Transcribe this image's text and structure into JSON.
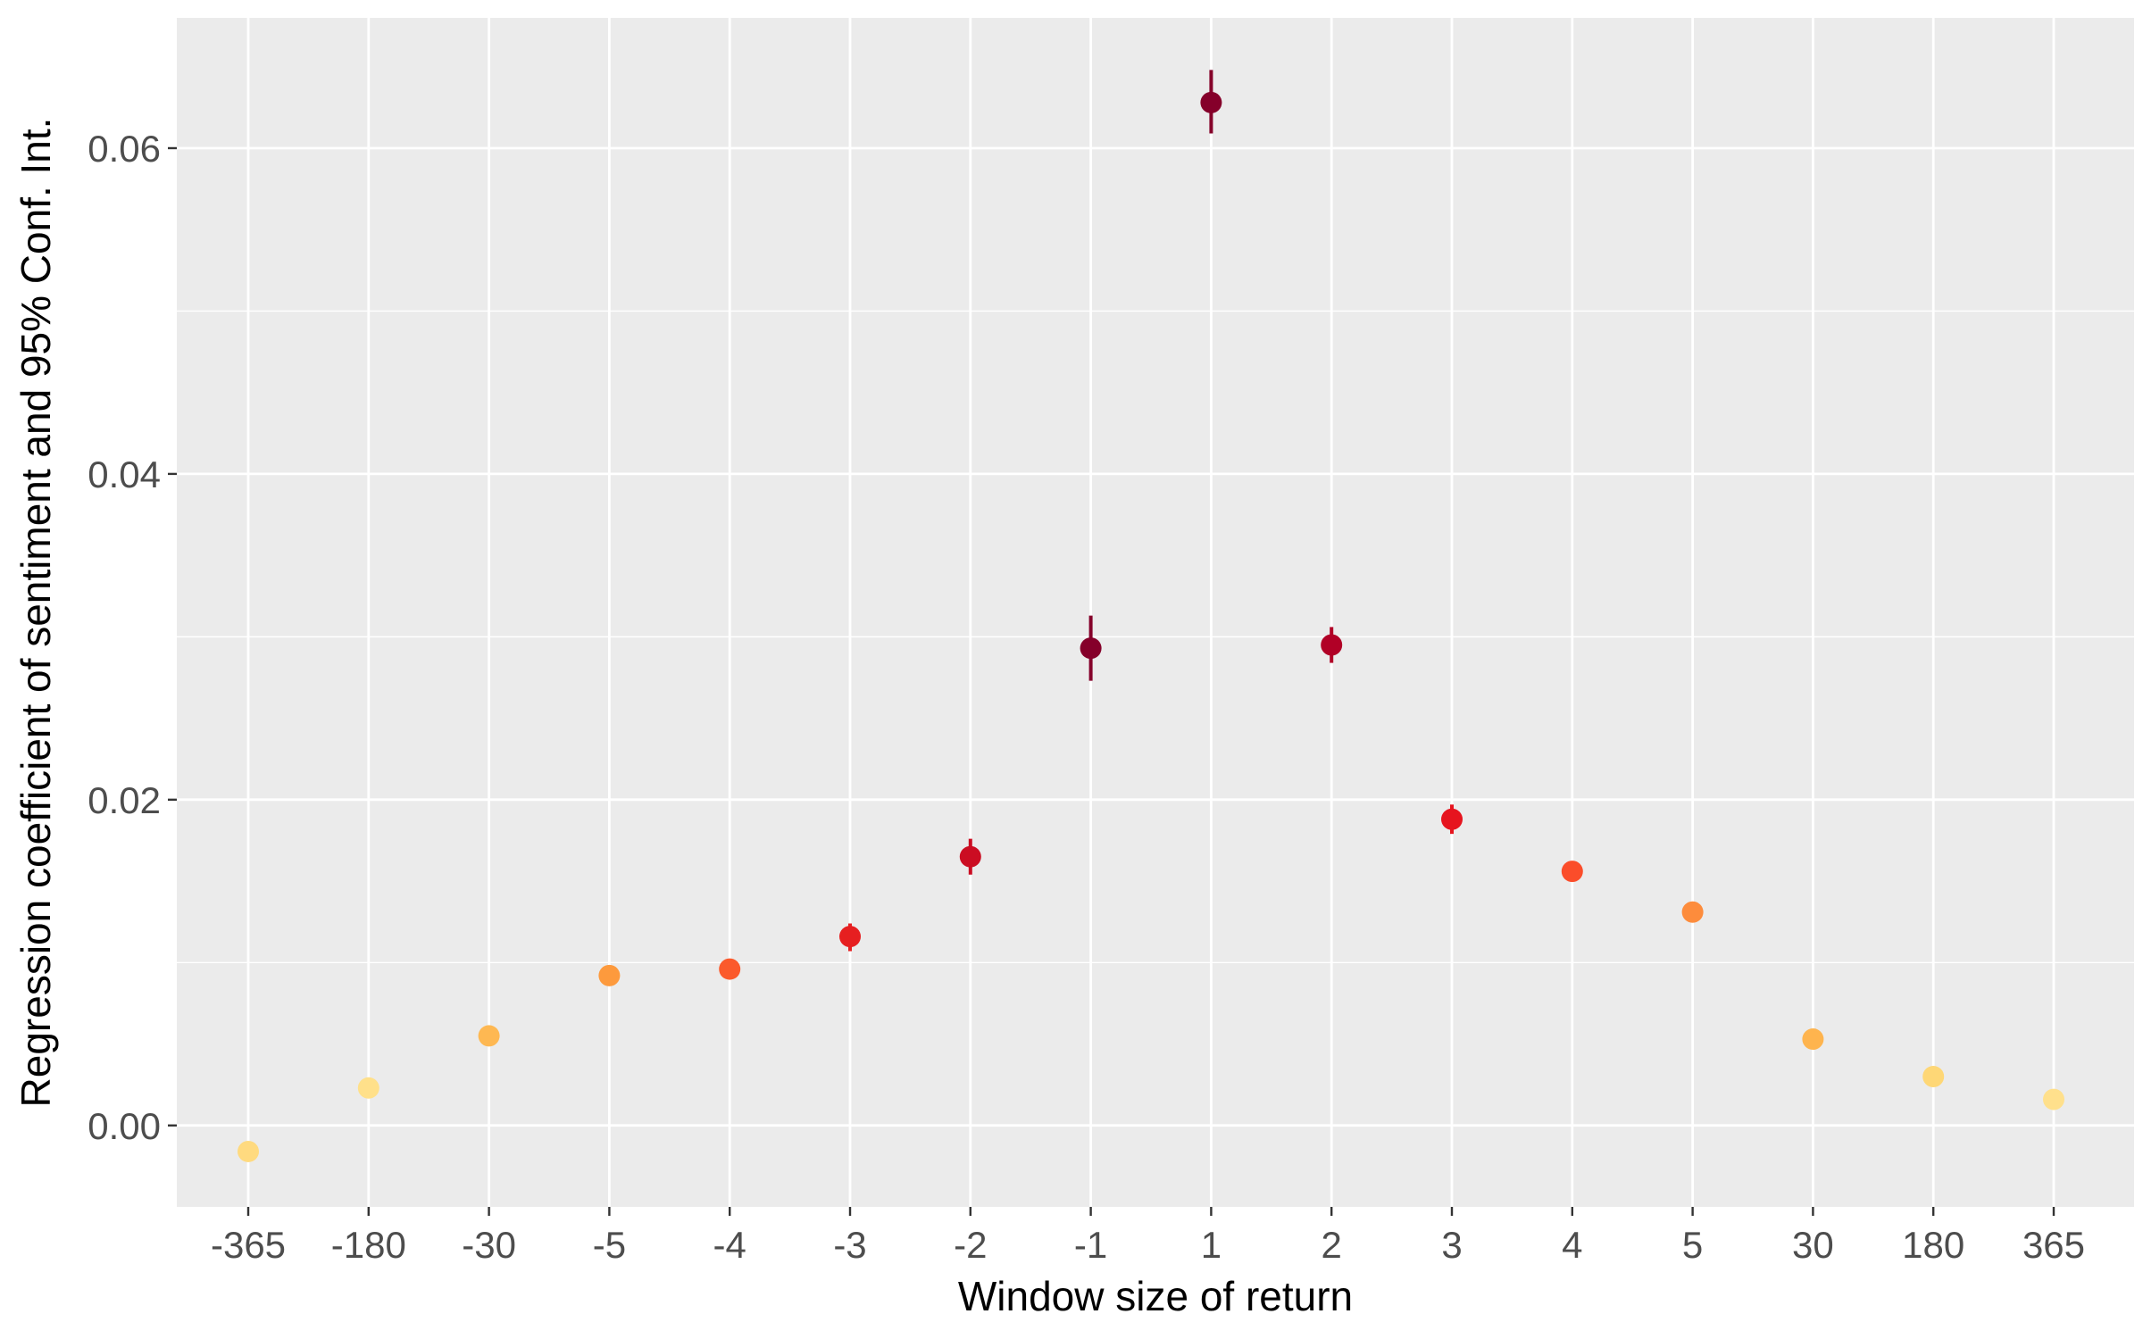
{
  "chart_data": {
    "type": "scatter",
    "title": "",
    "xlabel": "Window size of return",
    "ylabel": "Regression coefficient of sentiment and 95% Conf. Int.",
    "grid": true,
    "legend": "none",
    "categories": [
      "-365",
      "-180",
      "-30",
      "-5",
      "-4",
      "-3",
      "-2",
      "-1",
      "1",
      "2",
      "3",
      "4",
      "5",
      "30",
      "180",
      "365"
    ],
    "values": [
      -0.0016,
      0.0023,
      0.0055,
      0.0092,
      0.0096,
      0.0116,
      0.0165,
      0.0293,
      0.0628,
      0.0295,
      0.0188,
      0.0156,
      0.0131,
      0.0053,
      0.003,
      0.0016
    ],
    "ci_lower": [
      -0.0019,
      0.002,
      0.0052,
      0.0089,
      0.0092,
      0.0107,
      0.0154,
      0.0273,
      0.0609,
      0.0284,
      0.0179,
      0.0152,
      0.0128,
      0.005,
      0.0027,
      0.0013
    ],
    "ci_upper": [
      -0.0013,
      0.0026,
      0.0058,
      0.0095,
      0.01,
      0.0124,
      0.0176,
      0.0313,
      0.0648,
      0.0306,
      0.0197,
      0.016,
      0.0134,
      0.0056,
      0.0033,
      0.0019
    ],
    "point_colors": [
      "#ffda7f",
      "#ffe08a",
      "#feb852",
      "#fd9a3d",
      "#fb5a2c",
      "#e61f20",
      "#cb0d22",
      "#85002a",
      "#85002a",
      "#b10026",
      "#e6141e",
      "#fb4d2a",
      "#fd8c3c",
      "#feb44e",
      "#fed776",
      "#ffe08c"
    ],
    "yticks": [
      "0.00",
      "0.02",
      "0.04",
      "0.06"
    ],
    "ytick_values": [
      0.0,
      0.02,
      0.04,
      0.06
    ],
    "ylim": [
      -0.005,
      0.068
    ],
    "colors": {
      "panel_background": "#ebebeb",
      "grid": "#ffffff",
      "tick_text": "#4d4d4d",
      "axis_title": "#000000"
    }
  }
}
